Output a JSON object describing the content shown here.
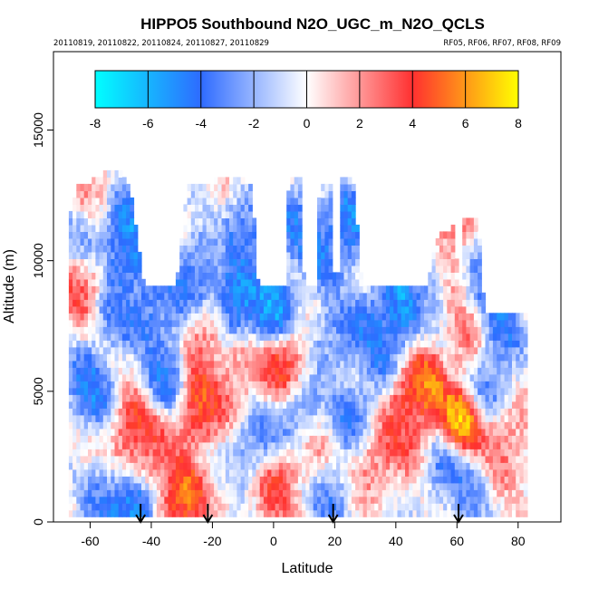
{
  "chart_data": {
    "type": "heatmap",
    "title": "HIPPO5 Southbound N2O_UGC_m_N2O_QCLS",
    "subtitle_left": "20110819, 20110822, 20110824, 20110827, 20110829",
    "subtitle_right": "RF05, RF06, RF07, RF08, RF09",
    "xlabel": "Latitude",
    "ylabel": "Altitude (m)",
    "xlim": [
      -72,
      94
    ],
    "ylim": [
      0,
      18000
    ],
    "xticks": [
      "-60",
      "-40",
      "-20",
      "0",
      "20",
      "40",
      "60",
      "80"
    ],
    "xtick_values": [
      -60,
      -40,
      -20,
      0,
      20,
      40,
      60,
      80
    ],
    "yticks": [
      "0",
      "5000",
      "10000",
      "15000"
    ],
    "ytick_values": [
      0,
      5000,
      10000,
      15000
    ],
    "colorbar": {
      "ticks": [
        "-8",
        "-6",
        "-4",
        "-2",
        "0",
        "2",
        "4",
        "6",
        "8"
      ],
      "tick_values": [
        -8,
        -6,
        -4,
        -2,
        0,
        2,
        4,
        6,
        8
      ],
      "range": [
        -8,
        8
      ],
      "colors": [
        "#00ffff",
        "#2e6bff",
        "#ffffff",
        "#ff3030",
        "#ffff00"
      ]
    },
    "flight_markers_lat": [
      -43.5,
      -21.5,
      19.5,
      60.5
    ],
    "ceiling_profile": [
      {
        "lat": -66,
        "alt": 11800
      },
      {
        "lat": -64,
        "alt": 12700
      },
      {
        "lat": -58,
        "alt": 13000
      },
      {
        "lat": -52,
        "alt": 13500
      },
      {
        "lat": -47,
        "alt": 12800
      },
      {
        "lat": -42,
        "alt": 8800
      },
      {
        "lat": -32,
        "alt": 8800
      },
      {
        "lat": -28,
        "alt": 12800
      },
      {
        "lat": -20,
        "alt": 12800
      },
      {
        "lat": -18,
        "alt": 13100
      },
      {
        "lat": -7,
        "alt": 12900
      },
      {
        "lat": -5,
        "alt": 8800
      },
      {
        "lat": 4,
        "alt": 8800
      },
      {
        "lat": 5,
        "alt": 13200
      },
      {
        "lat": 9,
        "alt": 13200
      },
      {
        "lat": 10,
        "alt": 8800
      },
      {
        "lat": 14,
        "alt": 8800
      },
      {
        "lat": 15,
        "alt": 12900
      },
      {
        "lat": 19,
        "alt": 12900
      },
      {
        "lat": 20,
        "alt": 8800
      },
      {
        "lat": 21,
        "alt": 8800
      },
      {
        "lat": 22,
        "alt": 13100
      },
      {
        "lat": 26,
        "alt": 13100
      },
      {
        "lat": 29,
        "alt": 8800
      },
      {
        "lat": 50,
        "alt": 8800
      },
      {
        "lat": 53,
        "alt": 10800
      },
      {
        "lat": 59,
        "alt": 11200
      },
      {
        "lat": 61,
        "alt": 8500
      },
      {
        "lat": 62,
        "alt": 11600
      },
      {
        "lat": 67,
        "alt": 11600
      },
      {
        "lat": 69,
        "alt": 8000
      },
      {
        "lat": 77,
        "alt": 8000
      },
      {
        "lat": 79,
        "alt": 8000
      }
    ],
    "data_extent_lat": [
      -67,
      82
    ],
    "anomaly_features": [
      {
        "lat": -55,
        "alt": 700,
        "value": -3
      },
      {
        "lat": -47,
        "alt": 300,
        "value": -6
      },
      {
        "lat": -45,
        "alt": 3400,
        "value": 4
      },
      {
        "lat": -38,
        "alt": 2500,
        "value": 2.5
      },
      {
        "lat": -30,
        "alt": 900,
        "value": 5
      },
      {
        "lat": -25,
        "alt": 4400,
        "value": 4.5
      },
      {
        "lat": -24,
        "alt": 7000,
        "value": 3
      },
      {
        "lat": -33,
        "alt": 7800,
        "value": -3
      },
      {
        "lat": -13,
        "alt": 5500,
        "value": 2.5
      },
      {
        "lat": -5,
        "alt": 2900,
        "value": -3.5
      },
      {
        "lat": 0,
        "alt": 1600,
        "value": 3.5
      },
      {
        "lat": 3,
        "alt": 6000,
        "value": 4
      },
      {
        "lat": 8,
        "alt": 4200,
        "value": -3
      },
      {
        "lat": 12,
        "alt": 2300,
        "value": 2
      },
      {
        "lat": 17,
        "alt": 1200,
        "value": -3
      },
      {
        "lat": 27,
        "alt": 4000,
        "value": -3.5
      },
      {
        "lat": 33,
        "alt": 2600,
        "value": 3
      },
      {
        "lat": 36,
        "alt": 6200,
        "value": -3
      },
      {
        "lat": 43,
        "alt": 4700,
        "value": 4
      },
      {
        "lat": 49,
        "alt": 4900,
        "value": 5.5
      },
      {
        "lat": 46,
        "alt": 3200,
        "value": 2.5
      },
      {
        "lat": 55,
        "alt": 2200,
        "value": -3
      },
      {
        "lat": 61,
        "alt": 3800,
        "value": 6.5
      },
      {
        "lat": 63,
        "alt": 1500,
        "value": -2.5
      },
      {
        "lat": 70,
        "alt": 5500,
        "value": -3
      },
      {
        "lat": 75,
        "alt": 3000,
        "value": 2.5
      },
      {
        "lat": 73,
        "alt": 7200,
        "value": -4
      },
      {
        "lat": -60,
        "alt": 5200,
        "value": -4
      },
      {
        "lat": -62,
        "alt": 9200,
        "value": 3
      },
      {
        "lat": -60,
        "alt": 11000,
        "value": -3
      },
      {
        "lat": -58,
        "alt": 12400,
        "value": 2
      },
      {
        "lat": -52,
        "alt": 8000,
        "value": -3
      },
      {
        "lat": -50,
        "alt": 11500,
        "value": -4
      },
      {
        "lat": -48,
        "alt": 10200,
        "value": -5
      },
      {
        "lat": -40,
        "alt": 8200,
        "value": -4
      },
      {
        "lat": -25,
        "alt": 9500,
        "value": -4
      },
      {
        "lat": -12,
        "alt": 8500,
        "value": -5
      },
      {
        "lat": -8,
        "alt": 11200,
        "value": -4
      },
      {
        "lat": 0,
        "alt": 8200,
        "value": -5
      },
      {
        "lat": 7,
        "alt": 11500,
        "value": -3.5
      },
      {
        "lat": 17,
        "alt": 10500,
        "value": -4
      },
      {
        "lat": 24,
        "alt": 11300,
        "value": -4.5
      },
      {
        "lat": 40,
        "alt": 8100,
        "value": -5.5
      },
      {
        "lat": 32,
        "alt": 7500,
        "value": -3.5
      },
      {
        "lat": 55,
        "alt": 9800,
        "value": -5
      },
      {
        "lat": 57,
        "alt": 10500,
        "value": 5.5
      },
      {
        "lat": 60,
        "alt": 9500,
        "value": 3.5
      },
      {
        "lat": 65,
        "alt": 9500,
        "value": -4
      },
      {
        "lat": 64,
        "alt": 6800,
        "value": 2.5
      },
      {
        "lat": -35,
        "alt": 5600,
        "value": -3.5
      },
      {
        "lat": 20,
        "alt": 7000,
        "value": -3
      }
    ]
  }
}
